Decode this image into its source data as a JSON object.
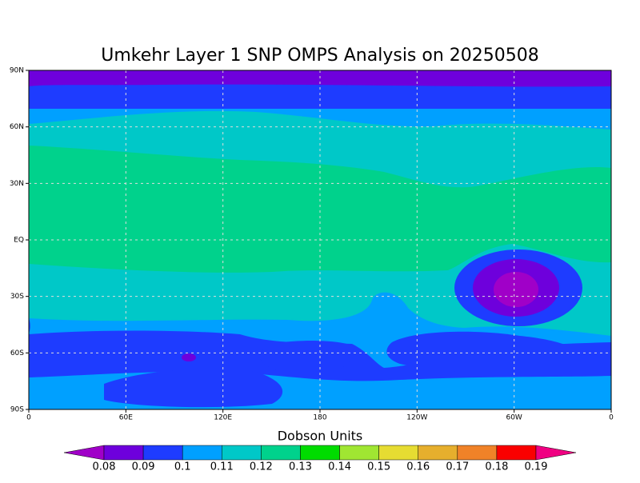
{
  "title": "Umkehr Layer 1 SNP OMPS Analysis on 20250508",
  "map": {
    "lon_labels": [
      "0",
      "60E",
      "120E",
      "180",
      "120W",
      "60W",
      "0"
    ],
    "lat_labels": [
      "90N",
      "60N",
      "30N",
      "EQ",
      "30S",
      "60S",
      "90S"
    ]
  },
  "colorbar": {
    "title": "Dobson Units",
    "levels": [
      0.08,
      0.09,
      0.1,
      0.11,
      0.12,
      0.13,
      0.14,
      0.15,
      0.16,
      0.17,
      0.18,
      0.19
    ],
    "colors": [
      "#a000c8",
      "#6e00dc",
      "#1e3cff",
      "#00a0ff",
      "#00c8c8",
      "#00d28c",
      "#00dc00",
      "#a0e632",
      "#e6dc32",
      "#e6af2d",
      "#f08228",
      "#fa0000",
      "#f00082"
    ]
  }
}
